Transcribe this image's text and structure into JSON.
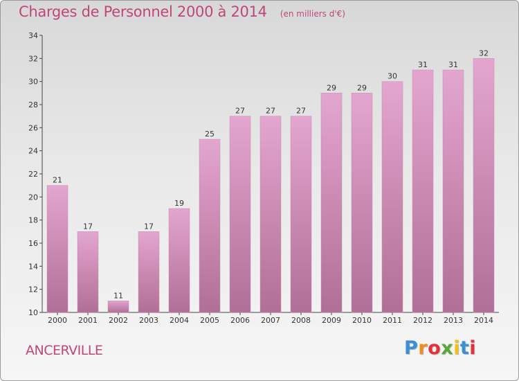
{
  "header": {
    "title": "Charges de Personnel 2000 à 2014",
    "subtitle": "(en milliers d'€)"
  },
  "footer": {
    "city": "ANCERVILLE",
    "brand_letters": [
      "P",
      "r",
      "o",
      "x",
      "i",
      "t",
      "i"
    ],
    "brand_colors": [
      "#3b8fd4",
      "#f28c1a",
      "#e2333a",
      "#5aa83a",
      "#f2c21a",
      "#3b8fd4",
      "#e2333a"
    ]
  },
  "colors": {
    "bar_top": "#e3a6cf",
    "bar_bottom": "#b06f96",
    "accent": "#c0467a"
  },
  "chart_data": {
    "type": "bar",
    "categories": [
      "2000",
      "2001",
      "2002",
      "2003",
      "2004",
      "2005",
      "2006",
      "2007",
      "2008",
      "2009",
      "2010",
      "2011",
      "2012",
      "2013",
      "2014"
    ],
    "values": [
      21,
      17,
      11,
      17,
      19,
      25,
      27,
      27,
      27,
      29,
      29,
      30,
      31,
      31,
      32
    ],
    "title": "Charges de Personnel 2000 à 2014",
    "subtitle": "(en milliers d'€)",
    "xlabel": "",
    "ylabel": "",
    "ylim": [
      10,
      34
    ],
    "yticks": [
      10,
      12,
      14,
      16,
      18,
      20,
      22,
      24,
      26,
      28,
      30,
      32,
      34
    ],
    "grid": false,
    "data_labels": true
  }
}
